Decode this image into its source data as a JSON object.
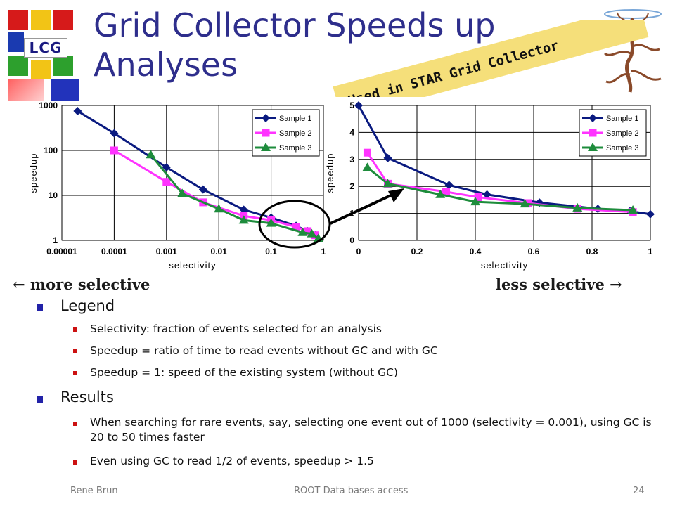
{
  "slide": {
    "title": "Grid Collector Speeds up Analyses",
    "banner": "Used in STAR Grid Collector",
    "logo_text": "LCG",
    "more_selective": "← more selective",
    "less_selective": "less selective →",
    "bullets": [
      {
        "text": "Legend",
        "children": [
          "Selectivity: fraction of events selected for an analysis",
          "Speedup = ratio of time to read events without GC and with GC",
          "Speedup = 1: speed of the existing system (without GC)"
        ]
      },
      {
        "text": "Results",
        "children": [
          "When searching for rare events, say, selecting one event out of 1000 (selectivity = 0.001), using GC is 20 to 50 times faster",
          "Even using GC to read 1/2 of events, speedup > 1.5"
        ]
      }
    ],
    "footer": {
      "left": "Rene Brun",
      "center": "ROOT Data bases access",
      "right": "24"
    }
  },
  "colors": {
    "title": "#2e2e8c",
    "sample1": "#0a1a80",
    "sample2": "#ff33ff",
    "sample3": "#1e8c3c",
    "banner": "#f5df7a"
  },
  "chart_data": [
    {
      "type": "line",
      "xscale": "log",
      "yscale": "log",
      "xlabel": "selectivity",
      "ylabel": "speedup",
      "xlim": [
        1e-05,
        1
      ],
      "ylim": [
        1,
        1000
      ],
      "xticks": [
        "0.00001",
        "0.0001",
        "0.001",
        "0.01",
        "0.1",
        "1"
      ],
      "yticks": [
        "1",
        "10",
        "100",
        "1000"
      ],
      "legend": "top-right",
      "grid": true,
      "series": [
        {
          "name": "Sample 1",
          "color": "#0a1a80",
          "marker": "diamond",
          "x": [
            2e-05,
            0.0001,
            0.001,
            0.005,
            0.03,
            0.1,
            0.3,
            0.5,
            0.7
          ],
          "y": [
            750,
            240,
            42,
            13.5,
            4.8,
            3.2,
            2.1,
            1.6,
            1.3
          ]
        },
        {
          "name": "Sample 2",
          "color": "#ff33ff",
          "marker": "square",
          "x": [
            0.0001,
            0.001,
            0.005,
            0.03,
            0.1,
            0.3,
            0.5,
            0.7
          ],
          "y": [
            100,
            20,
            7,
            3.5,
            2.8,
            2.0,
            1.6,
            1.3
          ]
        },
        {
          "name": "Sample 3",
          "color": "#1e8c3c",
          "marker": "triangle",
          "x": [
            0.0005,
            0.002,
            0.01,
            0.03,
            0.1,
            0.4,
            0.6,
            0.8
          ],
          "y": [
            80,
            11,
            5,
            2.8,
            2.4,
            1.5,
            1.4,
            1.1
          ]
        }
      ]
    },
    {
      "type": "line",
      "xscale": "linear",
      "yscale": "linear",
      "xlabel": "selectivity",
      "ylabel": "speedup",
      "xlim": [
        0,
        1
      ],
      "ylim": [
        0,
        5
      ],
      "xticks": [
        "0",
        "0.2",
        "0.4",
        "0.6",
        "0.8",
        "1"
      ],
      "yticks": [
        "0",
        "1",
        "2",
        "3",
        "4",
        "5"
      ],
      "legend": "top-right",
      "grid": true,
      "series": [
        {
          "name": "Sample 1",
          "color": "#0a1a80",
          "marker": "diamond",
          "x": [
            0.0,
            0.1,
            0.31,
            0.44,
            0.62,
            0.82,
            0.93,
            1.0
          ],
          "y": [
            5.0,
            3.05,
            2.05,
            1.7,
            1.4,
            1.17,
            1.08,
            0.97
          ]
        },
        {
          "name": "Sample 2",
          "color": "#ff33ff",
          "marker": "square",
          "x": [
            0.03,
            0.1,
            0.3,
            0.41,
            0.58,
            0.75,
            0.94
          ],
          "y": [
            3.25,
            2.1,
            1.8,
            1.6,
            1.38,
            1.17,
            1.05
          ]
        },
        {
          "name": "Sample 3",
          "color": "#1e8c3c",
          "marker": "triangle",
          "x": [
            0.03,
            0.1,
            0.28,
            0.4,
            0.57,
            0.75,
            0.94
          ],
          "y": [
            2.7,
            2.1,
            1.7,
            1.43,
            1.35,
            1.2,
            1.12
          ]
        }
      ]
    }
  ]
}
